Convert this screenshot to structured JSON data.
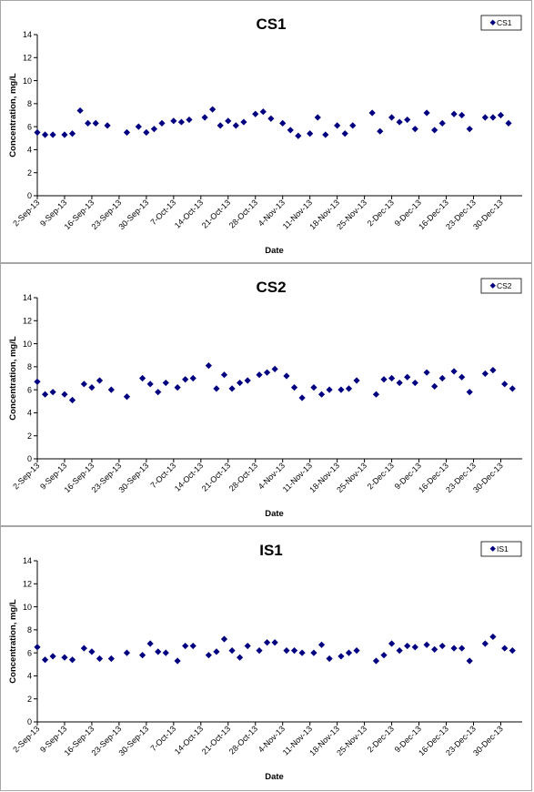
{
  "x_ticks": [
    "2-Sep-13",
    "9-Sep-13",
    "16-Sep-13",
    "23-Sep-13",
    "30-Sep-13",
    "7-Oct-13",
    "14-Oct-13",
    "21-Oct-13",
    "28-Oct-13",
    "4-Nov-13",
    "11-Nov-13",
    "18-Nov-13",
    "25-Nov-13",
    "2-Dec-13",
    "9-Dec-13",
    "16-Dec-13",
    "23-Dec-13",
    "30-Dec-13"
  ],
  "marker_color": "#000080",
  "chart_data": [
    {
      "type": "scatter",
      "title": "CS1",
      "xlabel": "Date",
      "ylabel": "Concentration, mg/L",
      "ylim": [
        0,
        14
      ],
      "yticks": [
        0,
        2,
        4,
        6,
        8,
        10,
        12,
        14
      ],
      "xlim": [
        "2013-09-02",
        "2013-12-30"
      ],
      "grid": false,
      "legend_position": "top-right",
      "series": [
        {
          "name": "CS1",
          "points": [
            [
              "2013-09-02",
              5.5
            ],
            [
              "2013-09-04",
              5.3
            ],
            [
              "2013-09-06",
              5.3
            ],
            [
              "2013-09-09",
              5.3
            ],
            [
              "2013-09-11",
              5.4
            ],
            [
              "2013-09-13",
              7.4
            ],
            [
              "2013-09-15",
              6.3
            ],
            [
              "2013-09-17",
              6.3
            ],
            [
              "2013-09-20",
              6.1
            ],
            [
              "2013-09-25",
              5.5
            ],
            [
              "2013-09-28",
              6.0
            ],
            [
              "2013-09-30",
              5.5
            ],
            [
              "2013-10-02",
              5.8
            ],
            [
              "2013-10-04",
              6.3
            ],
            [
              "2013-10-07",
              6.5
            ],
            [
              "2013-10-09",
              6.4
            ],
            [
              "2013-10-11",
              6.6
            ],
            [
              "2013-10-15",
              6.8
            ],
            [
              "2013-10-17",
              7.5
            ],
            [
              "2013-10-19",
              6.1
            ],
            [
              "2013-10-21",
              6.5
            ],
            [
              "2013-10-23",
              6.1
            ],
            [
              "2013-10-25",
              6.4
            ],
            [
              "2013-10-28",
              7.1
            ],
            [
              "2013-10-30",
              7.3
            ],
            [
              "2013-11-01",
              6.7
            ],
            [
              "2013-11-04",
              6.3
            ],
            [
              "2013-11-06",
              5.7
            ],
            [
              "2013-11-08",
              5.2
            ],
            [
              "2013-11-11",
              5.4
            ],
            [
              "2013-11-13",
              6.8
            ],
            [
              "2013-11-15",
              5.3
            ],
            [
              "2013-11-18",
              6.1
            ],
            [
              "2013-11-20",
              5.4
            ],
            [
              "2013-11-22",
              6.1
            ],
            [
              "2013-11-27",
              7.2
            ],
            [
              "2013-11-29",
              5.6
            ],
            [
              "2013-12-02",
              6.8
            ],
            [
              "2013-12-04",
              6.4
            ],
            [
              "2013-12-06",
              6.6
            ],
            [
              "2013-12-08",
              5.8
            ],
            [
              "2013-12-11",
              7.2
            ],
            [
              "2013-12-13",
              5.7
            ],
            [
              "2013-12-15",
              6.3
            ],
            [
              "2013-12-18",
              7.1
            ],
            [
              "2013-12-20",
              7.0
            ],
            [
              "2013-12-22",
              5.8
            ],
            [
              "2013-12-26",
              6.8
            ],
            [
              "2013-12-28",
              6.8
            ],
            [
              "2013-12-30",
              7.0
            ],
            [
              "2014-01-01",
              6.3
            ]
          ]
        }
      ]
    },
    {
      "type": "scatter",
      "title": "CS2",
      "xlabel": "Date",
      "ylabel": "Concentration, mg/L",
      "ylim": [
        0,
        14
      ],
      "yticks": [
        0,
        2,
        4,
        6,
        8,
        10,
        12,
        14
      ],
      "xlim": [
        "2013-09-02",
        "2013-12-30"
      ],
      "grid": false,
      "legend_position": "top-right",
      "series": [
        {
          "name": "CS2",
          "points": [
            [
              "2013-09-02",
              6.7
            ],
            [
              "2013-09-04",
              5.6
            ],
            [
              "2013-09-06",
              5.8
            ],
            [
              "2013-09-09",
              5.6
            ],
            [
              "2013-09-11",
              5.1
            ],
            [
              "2013-09-14",
              6.5
            ],
            [
              "2013-09-16",
              6.2
            ],
            [
              "2013-09-18",
              6.8
            ],
            [
              "2013-09-21",
              6.0
            ],
            [
              "2013-09-25",
              5.4
            ],
            [
              "2013-09-29",
              7.0
            ],
            [
              "2013-10-01",
              6.5
            ],
            [
              "2013-10-03",
              5.8
            ],
            [
              "2013-10-05",
              6.6
            ],
            [
              "2013-10-08",
              6.2
            ],
            [
              "2013-10-10",
              6.9
            ],
            [
              "2013-10-12",
              7.0
            ],
            [
              "2013-10-16",
              8.1
            ],
            [
              "2013-10-18",
              6.1
            ],
            [
              "2013-10-20",
              7.3
            ],
            [
              "2013-10-22",
              6.1
            ],
            [
              "2013-10-24",
              6.6
            ],
            [
              "2013-10-26",
              6.8
            ],
            [
              "2013-10-29",
              7.3
            ],
            [
              "2013-10-31",
              7.5
            ],
            [
              "2013-11-02",
              7.8
            ],
            [
              "2013-11-05",
              7.2
            ],
            [
              "2013-11-07",
              6.2
            ],
            [
              "2013-11-09",
              5.3
            ],
            [
              "2013-11-12",
              6.2
            ],
            [
              "2013-11-14",
              5.6
            ],
            [
              "2013-11-16",
              6.0
            ],
            [
              "2013-11-19",
              6.0
            ],
            [
              "2013-11-21",
              6.1
            ],
            [
              "2013-11-23",
              6.8
            ],
            [
              "2013-11-28",
              5.6
            ],
            [
              "2013-11-30",
              6.9
            ],
            [
              "2013-12-02",
              7.0
            ],
            [
              "2013-12-04",
              6.6
            ],
            [
              "2013-12-06",
              7.1
            ],
            [
              "2013-12-08",
              6.6
            ],
            [
              "2013-12-11",
              7.5
            ],
            [
              "2013-12-13",
              6.3
            ],
            [
              "2013-12-15",
              7.0
            ],
            [
              "2013-12-18",
              7.6
            ],
            [
              "2013-12-20",
              7.1
            ],
            [
              "2013-12-22",
              5.8
            ],
            [
              "2013-12-26",
              7.4
            ],
            [
              "2013-12-28",
              7.7
            ],
            [
              "2013-12-31",
              6.5
            ],
            [
              "2014-01-02",
              6.1
            ]
          ]
        }
      ]
    },
    {
      "type": "scatter",
      "title": "IS1",
      "xlabel": "Date",
      "ylabel": "Concentration, mg/L",
      "ylim": [
        0,
        14
      ],
      "yticks": [
        0,
        2,
        4,
        6,
        8,
        10,
        12,
        14
      ],
      "xlim": [
        "2013-09-02",
        "2013-12-30"
      ],
      "grid": false,
      "legend_position": "top-right",
      "series": [
        {
          "name": "IS1",
          "points": [
            [
              "2013-09-02",
              6.5
            ],
            [
              "2013-09-04",
              5.4
            ],
            [
              "2013-09-06",
              5.7
            ],
            [
              "2013-09-09",
              5.6
            ],
            [
              "2013-09-11",
              5.4
            ],
            [
              "2013-09-14",
              6.4
            ],
            [
              "2013-09-16",
              6.1
            ],
            [
              "2013-09-18",
              5.5
            ],
            [
              "2013-09-21",
              5.5
            ],
            [
              "2013-09-25",
              6.0
            ],
            [
              "2013-09-29",
              5.8
            ],
            [
              "2013-10-01",
              6.8
            ],
            [
              "2013-10-03",
              6.1
            ],
            [
              "2013-10-05",
              6.0
            ],
            [
              "2013-10-08",
              5.3
            ],
            [
              "2013-10-10",
              6.6
            ],
            [
              "2013-10-12",
              6.6
            ],
            [
              "2013-10-16",
              5.8
            ],
            [
              "2013-10-18",
              6.1
            ],
            [
              "2013-10-20",
              7.2
            ],
            [
              "2013-10-22",
              6.2
            ],
            [
              "2013-10-24",
              5.6
            ],
            [
              "2013-10-26",
              6.6
            ],
            [
              "2013-10-29",
              6.2
            ],
            [
              "2013-10-31",
              6.9
            ],
            [
              "2013-11-02",
              6.9
            ],
            [
              "2013-11-05",
              6.2
            ],
            [
              "2013-11-07",
              6.2
            ],
            [
              "2013-11-09",
              6.0
            ],
            [
              "2013-11-12",
              6.0
            ],
            [
              "2013-11-14",
              6.7
            ],
            [
              "2013-11-16",
              5.5
            ],
            [
              "2013-11-19",
              5.7
            ],
            [
              "2013-11-21",
              6.0
            ],
            [
              "2013-11-23",
              6.2
            ],
            [
              "2013-11-28",
              5.3
            ],
            [
              "2013-11-30",
              5.8
            ],
            [
              "2013-12-02",
              6.8
            ],
            [
              "2013-12-04",
              6.2
            ],
            [
              "2013-12-06",
              6.6
            ],
            [
              "2013-12-08",
              6.5
            ],
            [
              "2013-12-11",
              6.7
            ],
            [
              "2013-12-13",
              6.3
            ],
            [
              "2013-12-15",
              6.6
            ],
            [
              "2013-12-18",
              6.4
            ],
            [
              "2013-12-20",
              6.4
            ],
            [
              "2013-12-22",
              5.3
            ],
            [
              "2013-12-26",
              6.8
            ],
            [
              "2013-12-28",
              7.4
            ],
            [
              "2013-12-31",
              6.4
            ],
            [
              "2014-01-02",
              6.2
            ]
          ]
        }
      ]
    }
  ]
}
